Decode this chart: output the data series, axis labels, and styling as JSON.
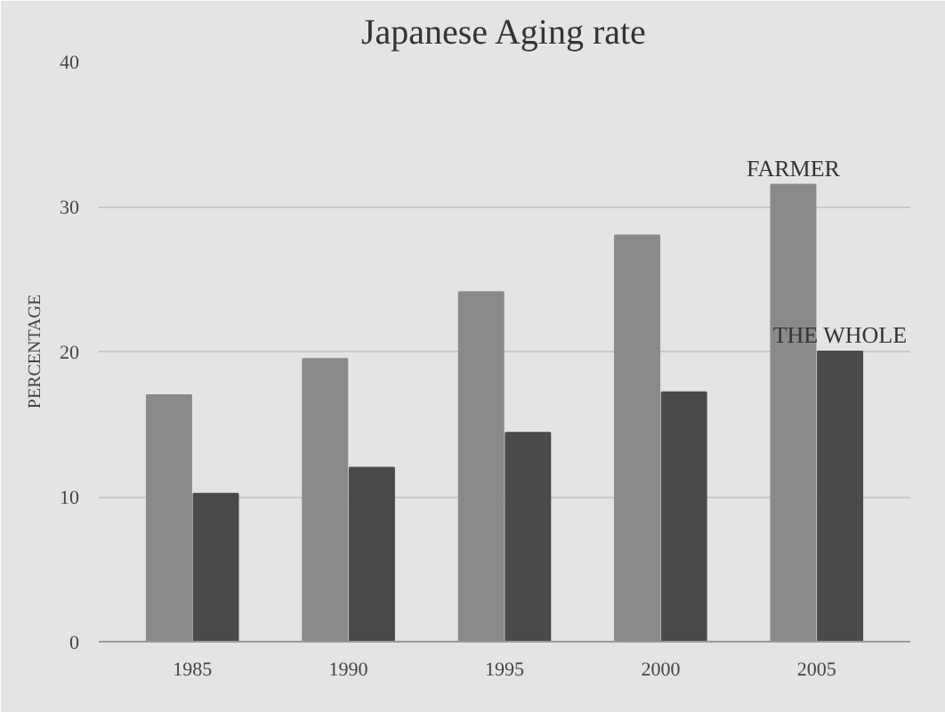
{
  "chart_data": {
    "type": "bar",
    "title": "Japanese Aging rate",
    "ylabel": "PERCENTAGE",
    "categories": [
      "1985",
      "1990",
      "1995",
      "2000",
      "2005"
    ],
    "series": [
      {
        "name": "FARMER",
        "color": "#8a8a8a",
        "values": [
          17,
          19.5,
          24.1,
          28,
          31.5
        ]
      },
      {
        "name": "THE WHOLE",
        "color": "#4a4a4a",
        "values": [
          10.2,
          12,
          14.4,
          17.2,
          20
        ]
      }
    ],
    "ylim": [
      0,
      40
    ],
    "yticks": [
      0,
      10,
      20,
      30,
      40
    ],
    "grid": "y"
  }
}
